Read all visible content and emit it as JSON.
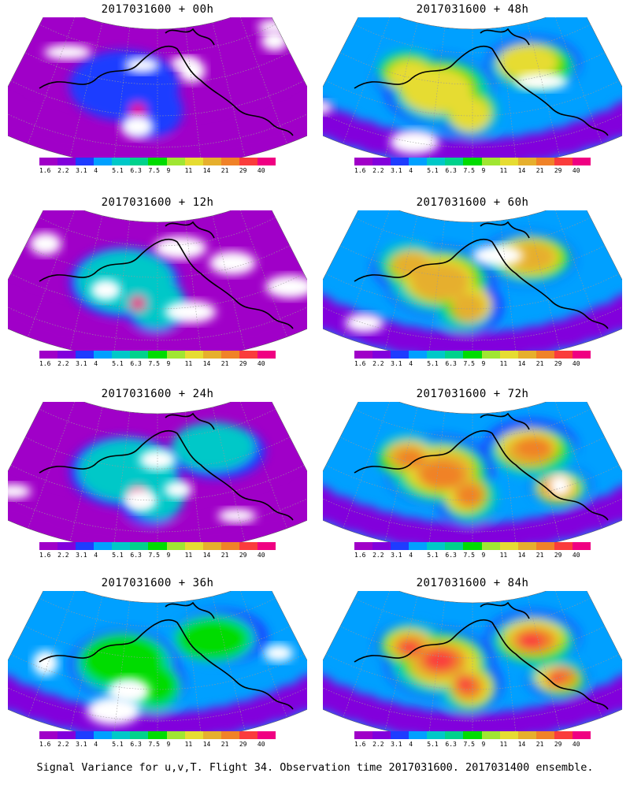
{
  "panels": [
    {
      "title": "2017031600 + 00h",
      "lead_hours": 0
    },
    {
      "title": "2017031600 + 48h",
      "lead_hours": 48
    },
    {
      "title": "2017031600 + 12h",
      "lead_hours": 12
    },
    {
      "title": "2017031600 + 60h",
      "lead_hours": 60
    },
    {
      "title": "2017031600 + 24h",
      "lead_hours": 24
    },
    {
      "title": "2017031600 + 72h",
      "lead_hours": 72
    },
    {
      "title": "2017031600 + 36h",
      "lead_hours": 36
    },
    {
      "title": "2017031600 + 84h",
      "lead_hours": 84
    }
  ],
  "colorbar": {
    "labels": [
      "1.6",
      "2.2",
      "3.1",
      "4",
      "5.1",
      "6.3",
      "7.5",
      "9",
      "11",
      "14",
      "21",
      "29",
      "40"
    ],
    "colors": [
      "#a000c8",
      "#8200dc",
      "#1e3cff",
      "#00a0ff",
      "#00c8c8",
      "#00d28c",
      "#00dc00",
      "#a0e632",
      "#e6dc32",
      "#e6af2d",
      "#f08228",
      "#fa3c3c",
      "#f00082"
    ]
  },
  "caption": "Signal Variance for u,v,T. Flight 34. Observation time 2017031600. 2017031400 ensemble."
}
